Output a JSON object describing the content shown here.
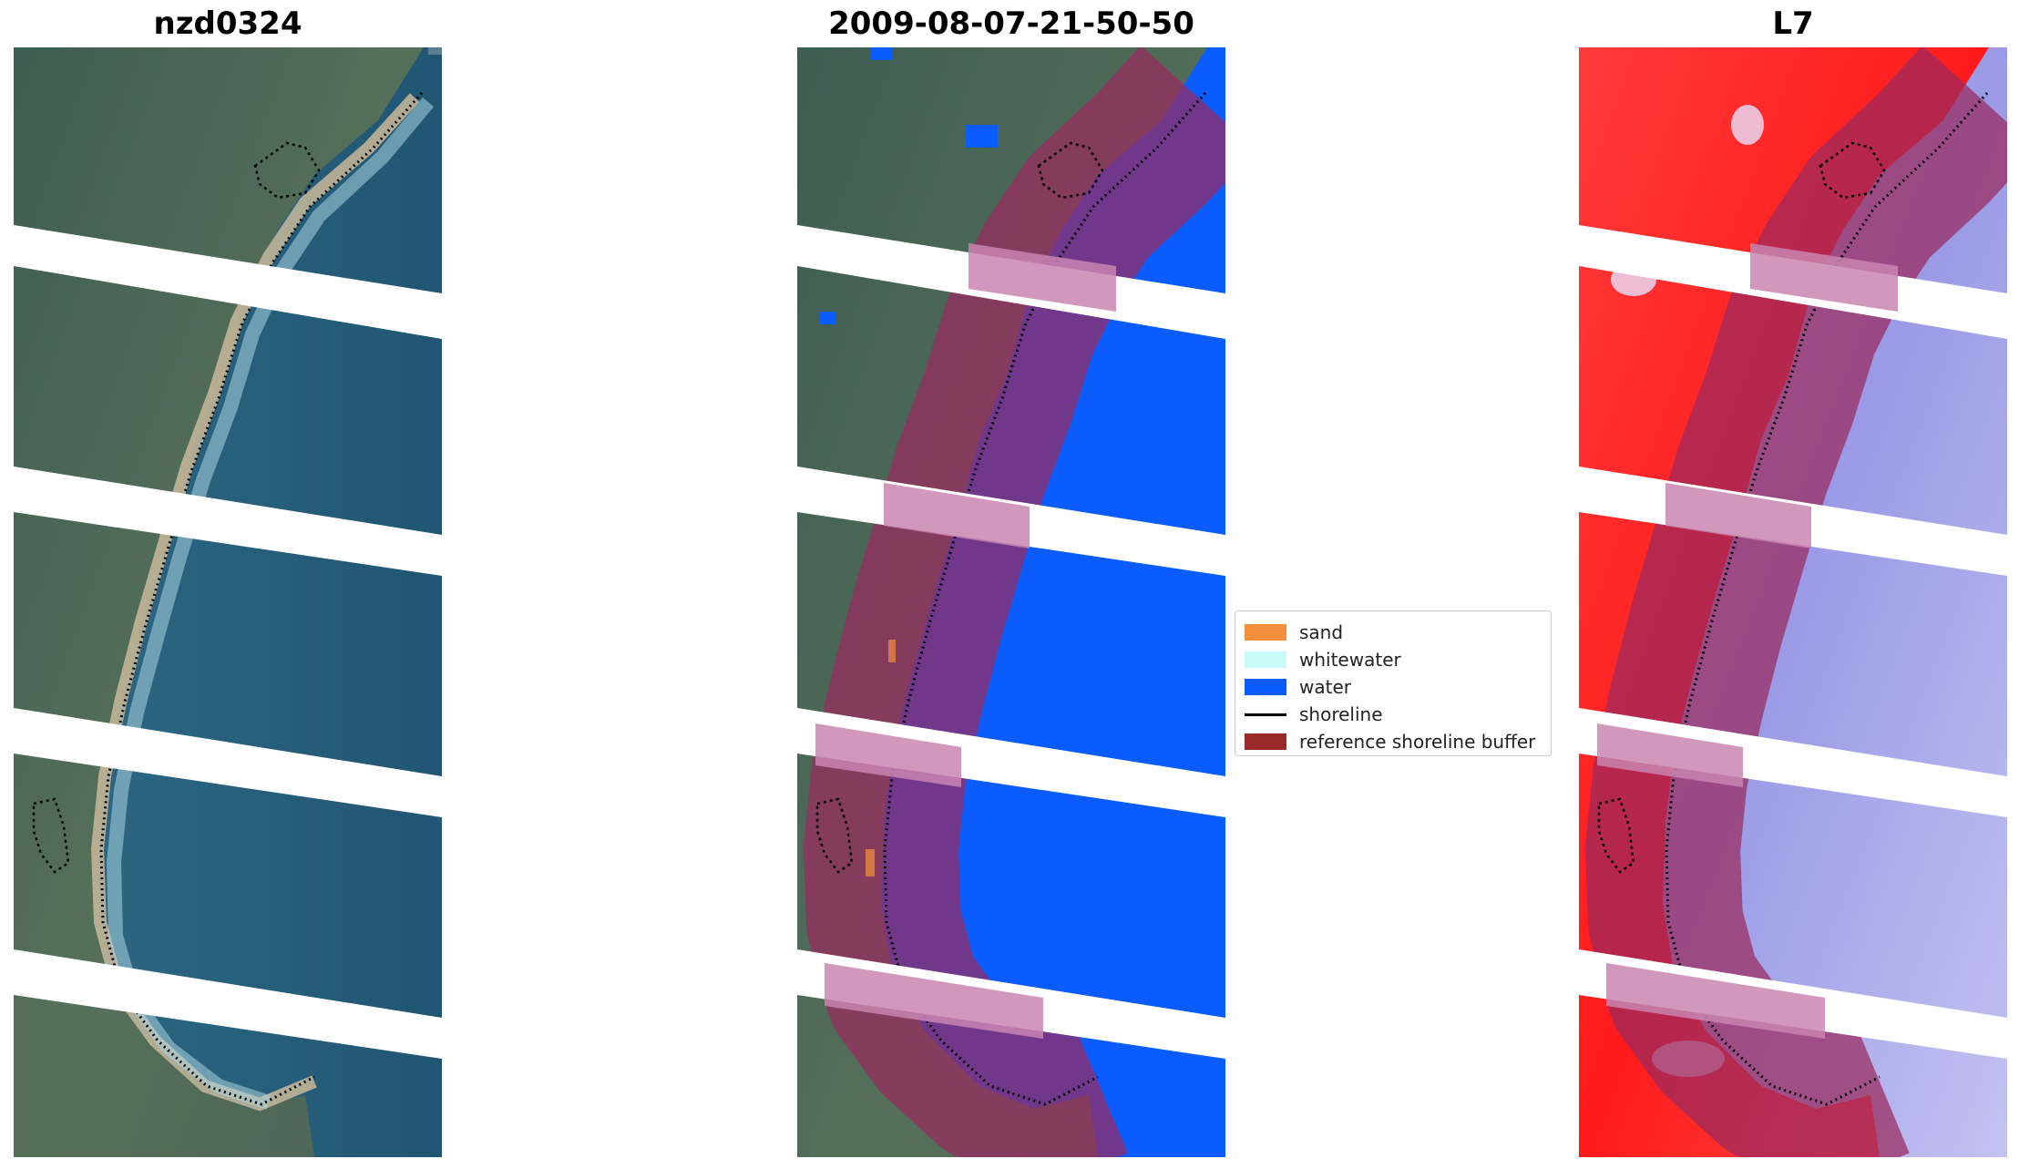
{
  "panels": [
    {
      "title": "nzd0324",
      "kind": "rgb"
    },
    {
      "title": "2009-08-07-21-50-50",
      "kind": "classified"
    },
    {
      "title": "L7",
      "kind": "index"
    }
  ],
  "legend": {
    "items": [
      {
        "label": "sand",
        "color": "#f4903c",
        "type": "patch"
      },
      {
        "label": "whitewater",
        "color": "#c8fafa",
        "type": "patch"
      },
      {
        "label": "water",
        "color": "#0a5cff",
        "type": "patch"
      },
      {
        "label": "shoreline",
        "color": "#000000",
        "type": "line"
      },
      {
        "label": "reference shoreline buffer",
        "color": "#9a2a2a",
        "type": "patch"
      }
    ]
  }
}
